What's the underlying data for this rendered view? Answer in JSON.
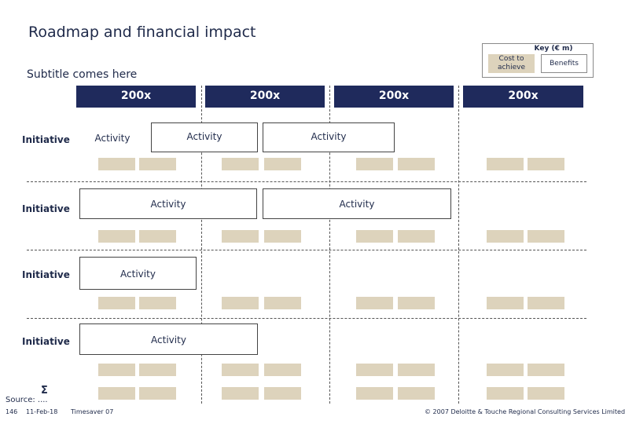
{
  "title": "Roadmap and financial impact",
  "subtitle": "Subtitle comes here",
  "key": {
    "title": "Key (€ m)",
    "cost_label": "Cost to achieve",
    "benefit_label": "Benefits",
    "cost_color": "#ddd3bc"
  },
  "periods": [
    "200x",
    "200x",
    "200x",
    "200x"
  ],
  "period_color": "#1f2a5c",
  "initiatives": [
    {
      "label": "Initiative",
      "activities": [
        "Activity",
        "Activity",
        "Activity"
      ]
    },
    {
      "label": "Initiative",
      "activities": [
        "Activity",
        "Activity"
      ]
    },
    {
      "label": "Initiative",
      "activities": [
        "Activity"
      ]
    },
    {
      "label": "Initiative",
      "activities": [
        "Activity"
      ]
    }
  ],
  "sigma": "Σ",
  "footer": {
    "source": "Source: ....",
    "page": "146",
    "date": "11-Feb-18",
    "app": "Timesaver 07",
    "copyright": "© 2007 Deloitte & Touche Regional Consulting Services Limited"
  }
}
